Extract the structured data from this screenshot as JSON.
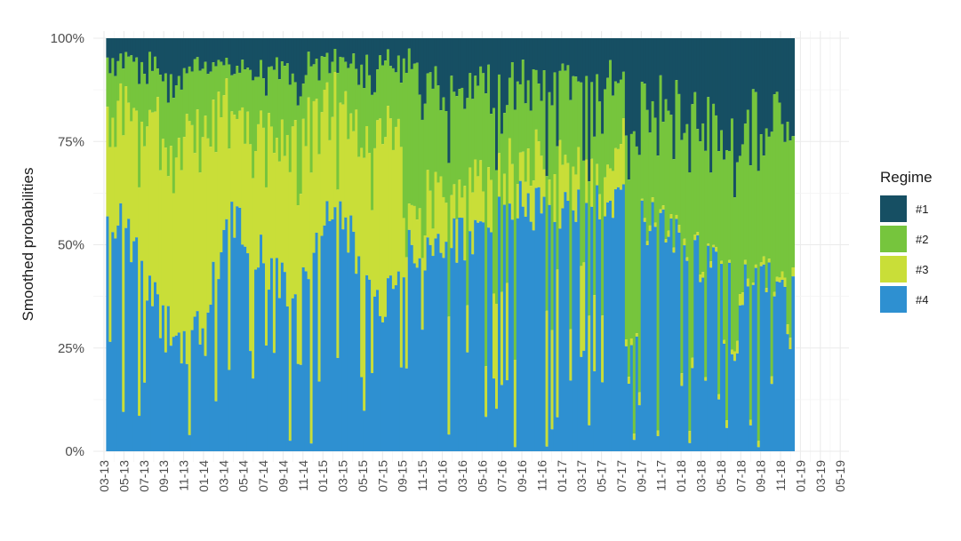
{
  "chart_data": {
    "type": "area",
    "subtype": "stacked-bar-100",
    "ylabel": "Smoothed probabilities",
    "y_ticks": [
      "0%",
      "25%",
      "50%",
      "75%",
      "100%"
    ],
    "ylim": [
      0,
      1
    ],
    "x_ticks": [
      "03-13",
      "05-13",
      "07-13",
      "09-13",
      "11-13",
      "01-14",
      "03-14",
      "05-14",
      "07-14",
      "09-14",
      "11-14",
      "01-15",
      "03-15",
      "05-15",
      "07-15",
      "09-15",
      "11-15",
      "01-16",
      "03-16",
      "05-16",
      "07-16",
      "09-16",
      "11-16",
      "01-17",
      "03-17",
      "05-17",
      "07-17",
      "09-17",
      "11-17",
      "01-18",
      "03-18",
      "05-18",
      "07-18",
      "09-18",
      "11-18",
      "01-19",
      "03-19",
      "05-19"
    ],
    "x_range": [
      "03-13",
      "05-19"
    ],
    "grid": true,
    "legend_title": "Regime",
    "legend_position": "right",
    "series": [
      {
        "name": "#1",
        "color": "#164f63"
      },
      {
        "name": "#2",
        "color": "#76c53d"
      },
      {
        "name": "#3",
        "color": "#c9de38"
      },
      {
        "name": "#4",
        "color": "#2e90d1"
      }
    ],
    "regime4_anchor_points": [
      {
        "x": "05-13",
        "y": 0.55
      },
      {
        "x": "07-13",
        "y": 0.4
      },
      {
        "x": "09-13",
        "y": 0.3
      },
      {
        "x": "11-13",
        "y": 0.25
      },
      {
        "x": "01-14",
        "y": 0.3
      },
      {
        "x": "03-14",
        "y": 0.55
      },
      {
        "x": "05-14",
        "y": 0.55
      },
      {
        "x": "07-14",
        "y": 0.45
      },
      {
        "x": "09-14",
        "y": 0.4
      },
      {
        "x": "11-14",
        "y": 0.45
      },
      {
        "x": "01-15",
        "y": 0.55
      },
      {
        "x": "03-15",
        "y": 0.55
      },
      {
        "x": "05-15",
        "y": 0.45
      },
      {
        "x": "07-15",
        "y": 0.35
      },
      {
        "x": "09-15",
        "y": 0.48
      },
      {
        "x": "11-15",
        "y": 0.48
      },
      {
        "x": "01-16",
        "y": 0.5
      },
      {
        "x": "03-16",
        "y": 0.52
      },
      {
        "x": "05-16",
        "y": 0.55
      },
      {
        "x": "07-16",
        "y": 0.6
      },
      {
        "x": "09-16",
        "y": 0.6
      },
      {
        "x": "11-16",
        "y": 0.58
      },
      {
        "x": "01-17",
        "y": 0.57
      },
      {
        "x": "03-17",
        "y": 0.58
      },
      {
        "x": "05-17",
        "y": 0.6
      },
      {
        "x": "07-17",
        "y": 0.6
      },
      {
        "x": "09-17",
        "y": 0.55
      },
      {
        "x": "11-17",
        "y": 0.55
      },
      {
        "x": "01-18",
        "y": 0.5
      },
      {
        "x": "03-18",
        "y": 0.46
      },
      {
        "x": "05-18",
        "y": 0.42
      },
      {
        "x": "07-18",
        "y": 0.41
      },
      {
        "x": "09-18",
        "y": 0.4
      },
      {
        "x": "11-18",
        "y": 0.4
      },
      {
        "x": "01-19",
        "y": 0.4
      }
    ]
  }
}
